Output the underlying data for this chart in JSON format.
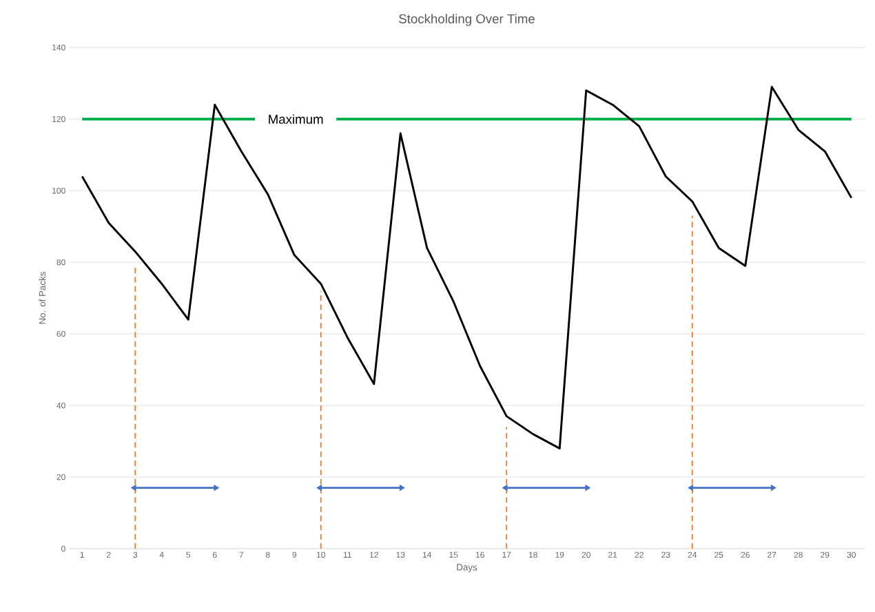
{
  "chart_data": {
    "type": "line",
    "title": "Stockholding Over Time",
    "xlabel": "Days",
    "ylabel": "No. of Packs",
    "x": [
      1,
      2,
      3,
      4,
      5,
      6,
      7,
      8,
      9,
      10,
      11,
      12,
      13,
      14,
      15,
      16,
      17,
      18,
      19,
      20,
      21,
      22,
      23,
      24,
      25,
      26,
      27,
      28,
      29,
      30
    ],
    "xlim": [
      0.5,
      30.5
    ],
    "xticks": [
      1,
      2,
      3,
      4,
      5,
      6,
      7,
      8,
      9,
      10,
      11,
      12,
      13,
      14,
      15,
      16,
      17,
      18,
      19,
      20,
      21,
      22,
      23,
      24,
      25,
      26,
      27,
      28,
      29,
      30
    ],
    "ylim": [
      0,
      140
    ],
    "yticks": [
      0,
      20,
      40,
      60,
      80,
      100,
      120,
      140
    ],
    "grid": "y",
    "marker": "none",
    "line_style": "solid",
    "series": [
      {
        "color": "#000000",
        "values": [
          104,
          91,
          83,
          74,
          64,
          124,
          111,
          99,
          82,
          74,
          59,
          46,
          116,
          84,
          69,
          51,
          37,
          32,
          28,
          128,
          124,
          118,
          104,
          97,
          84,
          79,
          129,
          117,
          111,
          98
        ]
      },
      {
        "color": "#ed7d31",
        "line_style": "dashed",
        "x": [
          3,
          3
        ],
        "values": [
          0,
          79
        ]
      },
      {
        "color": "#ed7d31",
        "line_style": "dashed",
        "x": [
          10,
          10
        ],
        "values": [
          0,
          72
        ]
      },
      {
        "color": "#ed7d31",
        "line_style": "dashed",
        "x": [
          17,
          17
        ],
        "values": [
          0,
          34
        ]
      },
      {
        "color": "#ed7d31",
        "line_style": "dashed",
        "x": [
          24,
          24
        ],
        "values": [
          0,
          93
        ]
      },
      {
        "color": "#4472c4",
        "marker": "triangle",
        "x": [
          3,
          6
        ],
        "values": [
          17,
          17
        ]
      },
      {
        "color": "#4472c4",
        "marker": "triangle",
        "x": [
          10,
          13
        ],
        "values": [
          17,
          17
        ]
      },
      {
        "color": "#4472c4",
        "marker": "triangle",
        "x": [
          17,
          20
        ],
        "values": [
          17,
          17
        ]
      },
      {
        "color": "#4472c4",
        "marker": "triangle",
        "x": [
          24,
          27
        ],
        "values": [
          17,
          17
        ]
      }
    ],
    "ref_lines": [
      {
        "axis": "y",
        "value": 120,
        "label": "Maximum",
        "color": "#00b050"
      }
    ]
  }
}
